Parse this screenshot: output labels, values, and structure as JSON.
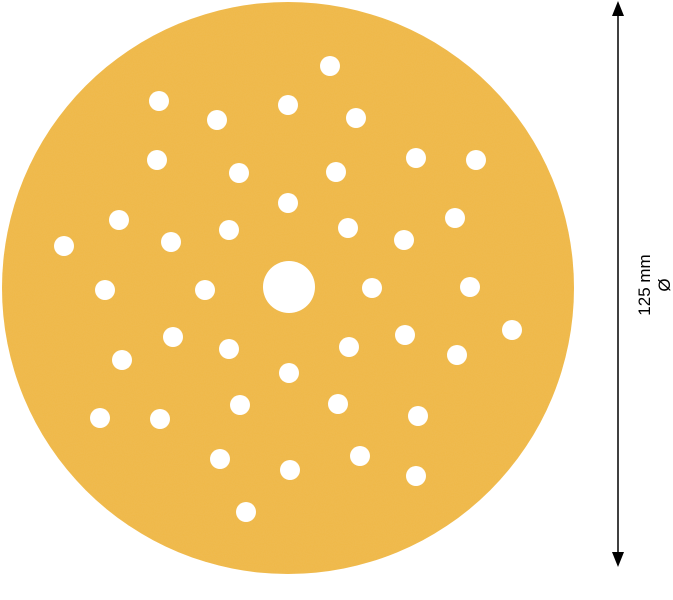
{
  "product": {
    "colors": {
      "disc": "#f0b846",
      "disc_shade": "#e8ad3a",
      "holes": "#ffffff",
      "dimension_line": "#000000"
    }
  },
  "dimension": {
    "value_label": "125 mm",
    "symbol": "Ø"
  }
}
